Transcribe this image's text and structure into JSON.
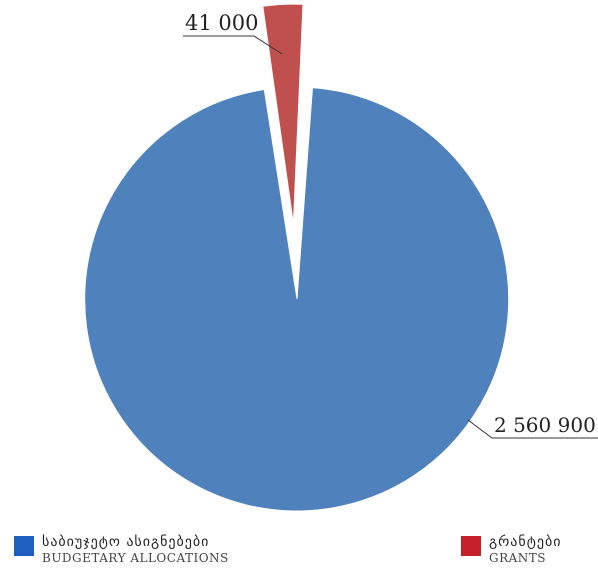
{
  "chart_data": {
    "type": "pie",
    "slices": [
      {
        "label_ka": "საბიუჯეტო ასიგნებები",
        "label_en": "BUDGETARY ALLOCATIONS",
        "value": 2560900,
        "display": "2 560 900",
        "color": "#4f81bd"
      },
      {
        "label_ka": "გრანტები",
        "label_en": "GRANTS",
        "value": 41000,
        "display": "41 000",
        "color": "#c0504d"
      }
    ],
    "legend_position": "bottom",
    "title": ""
  },
  "legend": {
    "budget": {
      "ka": "საბიუჯეტო ასიგნებები",
      "en": "BUDGETARY ALLOCATIONS",
      "color": "#1f5fbf"
    },
    "grants": {
      "ka": "გრანტები",
      "en": "GRANTS",
      "color": "#c8202a"
    }
  }
}
